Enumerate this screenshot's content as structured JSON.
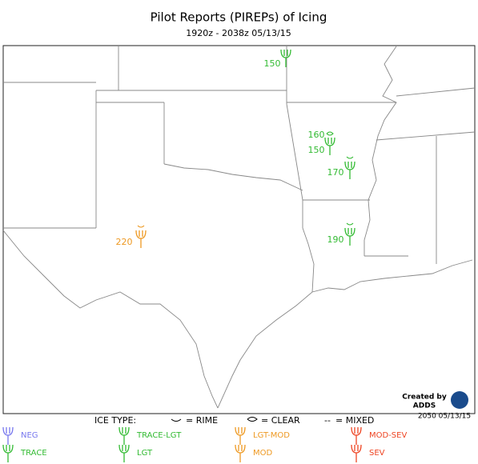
{
  "header": {
    "title": "Pilot Reports (PIREPs) of Icing",
    "subtitle": "1920z - 2038z  05/13/15"
  },
  "reports": [
    {
      "label": "150",
      "color": "#33bb33"
    },
    {
      "label": "160",
      "color": "#33bb33"
    },
    {
      "label": "150",
      "color": "#33bb33"
    },
    {
      "label": "170",
      "color": "#33bb33"
    },
    {
      "label": "220",
      "color": "#ee9922"
    },
    {
      "label": "190",
      "color": "#33bb33"
    }
  ],
  "credit": {
    "line1": "Created by",
    "line2": "ADDS",
    "timestamp": "2050 05/13/15"
  },
  "legend": {
    "heading": "ICE TYPE:",
    "rime": "= RIME",
    "clear": "= CLEAR",
    "mixed": "= MIXED",
    "items": [
      {
        "label": "NEG",
        "color": "#7777ee"
      },
      {
        "label": "TRACE-LGT",
        "color": "#33bb33"
      },
      {
        "label": "LGT-MOD",
        "color": "#ee9922"
      },
      {
        "label": "MOD-SEV",
        "color": "#ee4422"
      },
      {
        "label": "TRACE",
        "color": "#33bb33"
      },
      {
        "label": "LGT",
        "color": "#33bb33"
      },
      {
        "label": "MOD",
        "color": "#ee9922"
      },
      {
        "label": "SEV",
        "color": "#ee4422"
      }
    ]
  }
}
